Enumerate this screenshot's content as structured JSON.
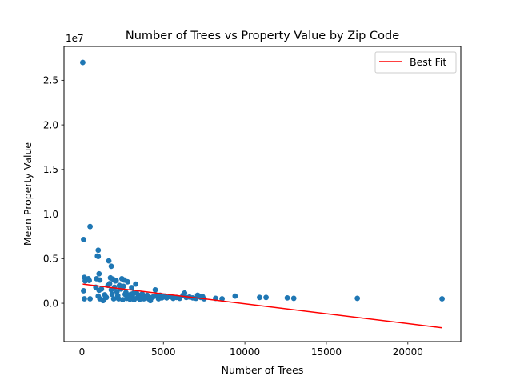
{
  "chart_data": {
    "type": "scatter",
    "title": "Number of Trees vs Property Value by Zip Code",
    "xlabel": "Number of Trees",
    "ylabel": "Mean Property Value",
    "y_offset_text": "1e7",
    "xlim": [
      -1100,
      23250
    ],
    "ylim": [
      -4300000,
      28800000
    ],
    "x_ticks": [
      0,
      5000,
      10000,
      15000,
      20000
    ],
    "x_tick_labels": [
      "0",
      "5000",
      "10000",
      "15000",
      "20000"
    ],
    "y_ticks": [
      0,
      5000000,
      10000000,
      15000000,
      20000000,
      25000000
    ],
    "y_tick_labels": [
      "0.0",
      "0.5",
      "1.0",
      "1.5",
      "2.0",
      "2.5"
    ],
    "grid": false,
    "legend_position": "top-right",
    "colors": {
      "points": "#1f77b4",
      "fit": "#ff0000"
    },
    "series": [
      {
        "kind": "scatter",
        "points": [
          [
            50,
            27000000
          ],
          [
            100,
            7150000
          ],
          [
            150,
            2900000
          ],
          [
            200,
            2500000
          ],
          [
            100,
            1400000
          ],
          [
            150,
            500000
          ],
          [
            400,
            2750000
          ],
          [
            450,
            2550000
          ],
          [
            500,
            500000
          ],
          [
            500,
            8600000
          ],
          [
            850,
            1800000
          ],
          [
            900,
            2750000
          ],
          [
            950,
            5300000
          ],
          [
            1000,
            5250000
          ],
          [
            1000,
            5950000
          ],
          [
            1050,
            3300000
          ],
          [
            1100,
            2600000
          ],
          [
            1050,
            1450000
          ],
          [
            1000,
            800000
          ],
          [
            1100,
            500000
          ],
          [
            1200,
            1600000
          ],
          [
            1300,
            300000
          ],
          [
            1400,
            950000
          ],
          [
            1450,
            700000
          ],
          [
            1500,
            650000
          ],
          [
            1600,
            2000000
          ],
          [
            1650,
            4750000
          ],
          [
            1700,
            2200000
          ],
          [
            1750,
            2850000
          ],
          [
            1800,
            1500000
          ],
          [
            1800,
            4150000
          ],
          [
            1850,
            1000000
          ],
          [
            1900,
            2700000
          ],
          [
            1950,
            500000
          ],
          [
            2000,
            1800000
          ],
          [
            2050,
            2500000
          ],
          [
            2100,
            2550000
          ],
          [
            2150,
            1300000
          ],
          [
            2200,
            850000
          ],
          [
            2250,
            500000
          ],
          [
            2300,
            2000000
          ],
          [
            2400,
            1600000
          ],
          [
            2450,
            2750000
          ],
          [
            2500,
            400000
          ],
          [
            2550,
            1900000
          ],
          [
            2600,
            2600000
          ],
          [
            2650,
            1000000
          ],
          [
            2700,
            1200000
          ],
          [
            2750,
            550000
          ],
          [
            2800,
            2400000
          ],
          [
            2850,
            900000
          ],
          [
            2900,
            650000
          ],
          [
            2950,
            450000
          ],
          [
            3000,
            1000000
          ],
          [
            3050,
            1750000
          ],
          [
            3100,
            750000
          ],
          [
            3150,
            1100000
          ],
          [
            3200,
            400000
          ],
          [
            3300,
            2150000
          ],
          [
            3350,
            1150000
          ],
          [
            3400,
            600000
          ],
          [
            3500,
            900000
          ],
          [
            3550,
            450000
          ],
          [
            3650,
            800000
          ],
          [
            3700,
            1050000
          ],
          [
            3800,
            500000
          ],
          [
            3900,
            700000
          ],
          [
            4000,
            900000
          ],
          [
            4100,
            500000
          ],
          [
            4200,
            300000
          ],
          [
            4300,
            650000
          ],
          [
            4400,
            750000
          ],
          [
            4500,
            1500000
          ],
          [
            4600,
            800000
          ],
          [
            4700,
            500000
          ],
          [
            4800,
            900000
          ],
          [
            4900,
            600000
          ],
          [
            5000,
            700000
          ],
          [
            5100,
            800000
          ],
          [
            5200,
            600000
          ],
          [
            5400,
            750000
          ],
          [
            5500,
            700000
          ],
          [
            5600,
            550000
          ],
          [
            5800,
            650000
          ],
          [
            6000,
            550000
          ],
          [
            6200,
            900000
          ],
          [
            6300,
            1150000
          ],
          [
            6400,
            650000
          ],
          [
            6600,
            700000
          ],
          [
            6800,
            600000
          ],
          [
            7000,
            550000
          ],
          [
            7100,
            900000
          ],
          [
            7200,
            800000
          ],
          [
            7300,
            650000
          ],
          [
            7400,
            750000
          ],
          [
            7500,
            500000
          ],
          [
            8200,
            550000
          ],
          [
            8600,
            500000
          ],
          [
            9400,
            800000
          ],
          [
            10900,
            650000
          ],
          [
            11300,
            650000
          ],
          [
            12600,
            600000
          ],
          [
            13000,
            550000
          ],
          [
            16900,
            550000
          ],
          [
            22100,
            500000
          ]
        ]
      },
      {
        "kind": "line",
        "name": "Best Fit",
        "points": [
          [
            50,
            2150000
          ],
          [
            22100,
            -2750000
          ]
        ]
      }
    ]
  }
}
